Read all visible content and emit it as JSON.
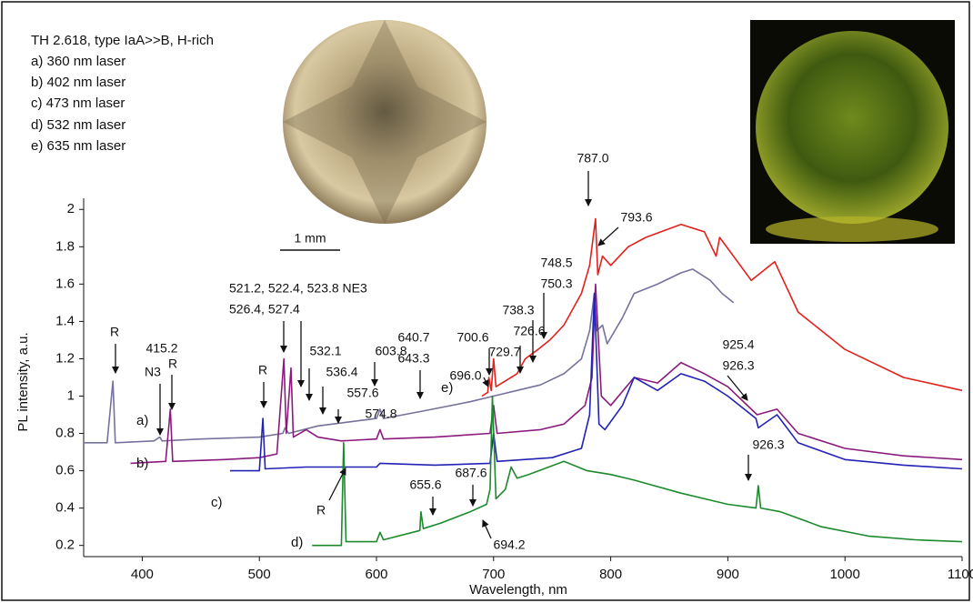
{
  "chart_data": {
    "type": "line",
    "title": "TH 2.618, type IaA>>B, H-rich",
    "x_label": "Wavelength, nm",
    "y_label": "PL intensity, a.u.",
    "scale_bar": "1 mm",
    "xlim": [
      350,
      1100
    ],
    "xticks": [
      400,
      500,
      600,
      700,
      800,
      900,
      1000,
      1100
    ],
    "ylim": [
      0.14,
      2.05
    ],
    "yticks": [
      0.2,
      0.4,
      0.6,
      0.8,
      1,
      1.2,
      1.4,
      1.6,
      1.8,
      2
    ],
    "series": [
      {
        "name": "a) 360 nm laser",
        "label": "a)",
        "color": "#75739c",
        "x": [
          350,
          370,
          375,
          377,
          410,
          415,
          417,
          450,
          500,
          520,
          522,
          525,
          550,
          575,
          600,
          603,
          606,
          640,
          680,
          700,
          720,
          740,
          760,
          775,
          782,
          786,
          788,
          793,
          797,
          810,
          820,
          840,
          860,
          870,
          885,
          895,
          905
        ],
        "values": [
          0.75,
          0.75,
          1.08,
          0.75,
          0.76,
          0.78,
          0.76,
          0.77,
          0.78,
          0.8,
          0.83,
          0.8,
          0.84,
          0.86,
          0.88,
          0.93,
          0.88,
          0.92,
          0.97,
          1.0,
          1.03,
          1.06,
          1.12,
          1.2,
          1.35,
          1.55,
          1.35,
          1.38,
          1.28,
          1.42,
          1.55,
          1.6,
          1.66,
          1.68,
          1.62,
          1.55,
          1.5
        ]
      },
      {
        "name": "b) 402 nm laser",
        "label": "b)",
        "color": "#8a1a7c",
        "x": [
          390,
          420,
          424,
          426,
          470,
          500,
          515,
          521,
          523,
          527,
          529,
          540,
          550,
          570,
          600,
          603,
          606,
          650,
          697,
          700,
          703,
          740,
          760,
          778,
          784,
          787,
          792,
          800,
          820,
          840,
          860,
          880,
          900,
          925,
          942,
          960,
          1000,
          1050,
          1100
        ],
        "values": [
          0.64,
          0.65,
          0.93,
          0.65,
          0.66,
          0.67,
          0.69,
          1.2,
          0.8,
          1.15,
          0.78,
          0.82,
          0.78,
          0.76,
          0.77,
          0.82,
          0.77,
          0.78,
          0.8,
          0.95,
          0.8,
          0.82,
          0.85,
          0.95,
          1.1,
          1.6,
          1.0,
          0.95,
          1.1,
          1.07,
          1.18,
          1.12,
          1.05,
          0.9,
          0.93,
          0.8,
          0.72,
          0.68,
          0.66
        ]
      },
      {
        "name": "c) 473 nm laser",
        "label": "c)",
        "color": "#2222b4",
        "x": [
          475,
          500,
          503,
          505,
          540,
          600,
          603,
          650,
          697,
          700,
          703,
          750,
          775,
          782,
          786,
          790,
          795,
          810,
          820,
          840,
          860,
          880,
          900,
          924,
          926,
          942,
          960,
          1000,
          1050,
          1100
        ],
        "values": [
          0.6,
          0.6,
          0.88,
          0.61,
          0.62,
          0.62,
          0.64,
          0.63,
          0.64,
          0.8,
          0.65,
          0.67,
          0.72,
          0.9,
          1.55,
          0.85,
          0.82,
          0.95,
          1.1,
          1.03,
          1.12,
          1.08,
          1.0,
          0.88,
          0.83,
          0.9,
          0.75,
          0.66,
          0.63,
          0.61
        ]
      },
      {
        "name": "d) 532 nm laser",
        "label": "d)",
        "color": "#1b8a2c",
        "x": [
          545,
          570,
          572,
          574,
          600,
          603,
          606,
          637,
          638,
          640,
          655,
          680,
          694,
          697,
          699,
          702,
          710,
          715,
          720,
          730,
          760,
          780,
          800,
          820,
          860,
          900,
          924,
          926,
          928,
          945,
          980,
          1020,
          1060,
          1100
        ],
        "values": [
          0.2,
          0.2,
          0.75,
          0.22,
          0.22,
          0.27,
          0.23,
          0.28,
          0.38,
          0.29,
          0.32,
          0.38,
          0.42,
          0.5,
          1.0,
          0.45,
          0.5,
          0.62,
          0.56,
          0.58,
          0.65,
          0.6,
          0.58,
          0.55,
          0.48,
          0.42,
          0.4,
          0.52,
          0.4,
          0.38,
          0.3,
          0.25,
          0.23,
          0.22
        ]
      },
      {
        "name": "e) 635 nm laser",
        "label": "e)",
        "color": "#e2201c",
        "x": [
          690,
          695,
          696,
          698,
          700,
          702,
          720,
          727,
          738,
          748,
          760,
          775,
          782,
          787,
          789,
          793,
          800,
          815,
          830,
          860,
          880,
          890,
          893,
          920,
          940,
          960,
          1000,
          1050,
          1100
        ],
        "values": [
          1.0,
          1.02,
          1.1,
          1.03,
          1.2,
          1.05,
          1.12,
          1.2,
          1.25,
          1.3,
          1.38,
          1.55,
          1.7,
          1.95,
          1.65,
          1.75,
          1.7,
          1.8,
          1.85,
          1.92,
          1.88,
          1.75,
          1.85,
          1.62,
          1.72,
          1.45,
          1.25,
          1.1,
          1.03
        ]
      }
    ],
    "annotations": [
      "R",
      "415.2",
      "N3",
      "R",
      "R",
      "521.2, 522.4, 523.8 NE3",
      "526.4, 527.4",
      "532.1",
      "536.4",
      "557.6",
      "574.8",
      "603.8",
      "640.7",
      "643.3",
      "R",
      "696.0",
      "700.6",
      "729.7",
      "726.6",
      "738.3",
      "748.5",
      "750.3",
      "787.0",
      "793.6",
      "925.4",
      "926.3",
      "926.3",
      "655.6",
      "687.6",
      "694.2"
    ]
  }
}
